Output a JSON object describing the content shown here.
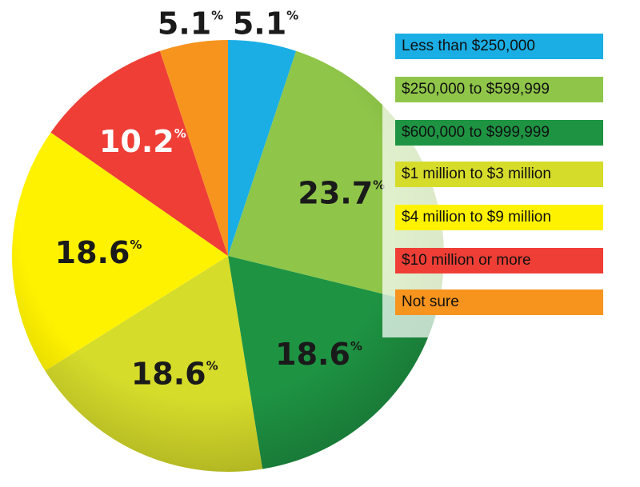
{
  "chart_data": {
    "type": "pie",
    "title": "",
    "start_angle_deg": 0,
    "direction": "clockwise",
    "series": [
      {
        "name": "Less than $250,000",
        "value": 5.1,
        "label": "5.1",
        "color": "#1aaee5"
      },
      {
        "name": "$250,000 to $599,999",
        "value": 23.7,
        "label": "23.7",
        "color": "#8fc649"
      },
      {
        "name": "$600,000 to $999,999",
        "value": 18.6,
        "label": "18.6",
        "color": "#1e9443"
      },
      {
        "name": "$1 million to $3 million",
        "value": 18.6,
        "label": "18.6",
        "color": "#d6dc2a"
      },
      {
        "name": "$4 million to $9 million",
        "value": 18.6,
        "label": "18.6",
        "color": "#fff200"
      },
      {
        "name": "$10 million or more",
        "value": 10.2,
        "label": "10.2",
        "color": "#ef3e36"
      },
      {
        "name": "Not sure",
        "value": 5.1,
        "label": "5.1",
        "color": "#f7941e"
      }
    ],
    "percent_sign": "%",
    "legend_position": "right"
  }
}
